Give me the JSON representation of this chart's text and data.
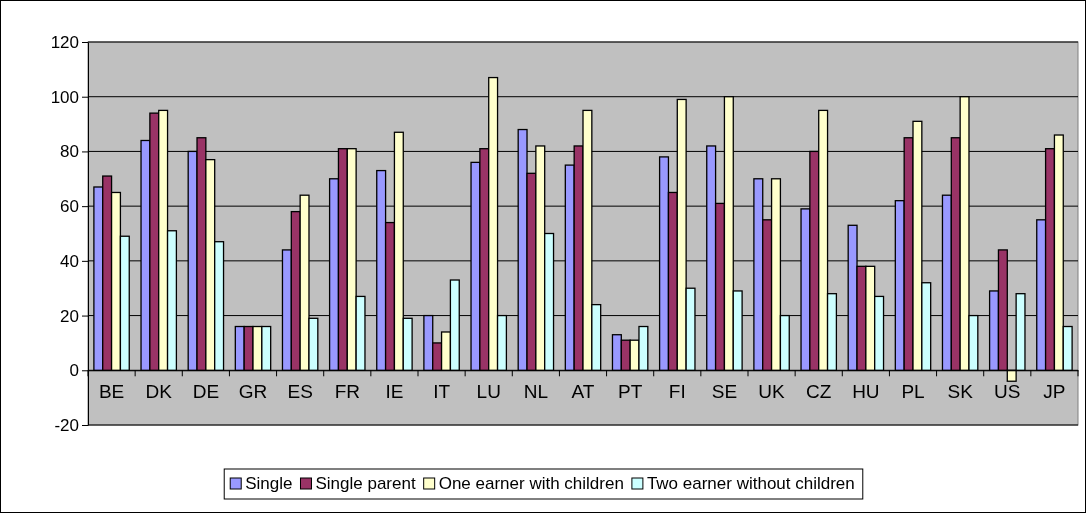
{
  "chart_data": {
    "type": "bar",
    "categories": [
      "BE",
      "DK",
      "DE",
      "GR",
      "ES",
      "FR",
      "IE",
      "IT",
      "LU",
      "NL",
      "AT",
      "PT",
      "FI",
      "SE",
      "UK",
      "CZ",
      "HU",
      "PL",
      "SK",
      "US",
      "JP"
    ],
    "series": [
      {
        "name": "Single",
        "color": "#9999ff",
        "values": [
          67,
          84,
          80,
          16,
          44,
          70,
          73,
          20,
          76,
          88,
          75,
          13,
          78,
          82,
          70,
          59,
          53,
          62,
          64,
          29,
          55
        ]
      },
      {
        "name": "Single parent",
        "color": "#993366",
        "values": [
          71,
          94,
          85,
          16,
          58,
          81,
          54,
          10,
          81,
          72,
          82,
          11,
          65,
          61,
          55,
          80,
          38,
          85,
          85,
          44,
          81
        ]
      },
      {
        "name": "One earner with children",
        "color": "#ffffcc",
        "values": [
          65,
          95,
          77,
          16,
          64,
          81,
          87,
          14,
          107,
          82,
          95,
          11,
          99,
          100,
          70,
          95,
          38,
          91,
          100,
          -4,
          86
        ]
      },
      {
        "name": "Two earner without children",
        "color": "#ccffff",
        "values": [
          49,
          51,
          47,
          16,
          19,
          27,
          19,
          33,
          20,
          50,
          24,
          16,
          30,
          29,
          20,
          28,
          27,
          32,
          20,
          28,
          16
        ]
      }
    ],
    "ylim": [
      -20,
      120
    ],
    "yticks": [
      -20,
      0,
      20,
      40,
      60,
      80,
      100,
      120
    ],
    "grid": "y",
    "legend": "bottom"
  }
}
